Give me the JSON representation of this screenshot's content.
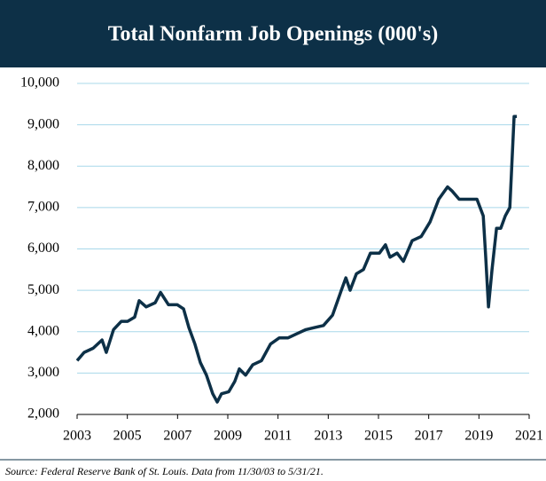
{
  "chart_data": {
    "type": "line",
    "title": "Total Nonfarm Job Openings (000's)",
    "source": "Source: Federal Reserve Bank of St. Louis. Data from 11/30/03 to 5/31/21.",
    "color": "#0d3047",
    "grid": true,
    "x": [
      2003.0,
      2003.28,
      2003.64,
      2003.99,
      2004.16,
      2004.45,
      2004.76,
      2005.01,
      2005.29,
      2005.47,
      2005.75,
      2006.11,
      2006.32,
      2006.64,
      2006.99,
      2007.24,
      2007.45,
      2007.69,
      2007.91,
      2008.15,
      2008.4,
      2008.58,
      2008.75,
      2009.04,
      2009.28,
      2009.46,
      2009.71,
      2009.99,
      2010.34,
      2010.7,
      2011.05,
      2011.4,
      2011.75,
      2012.11,
      2012.46,
      2012.81,
      2013.17,
      2013.52,
      2013.7,
      2013.87,
      2014.12,
      2014.4,
      2014.68,
      2015.04,
      2015.28,
      2015.46,
      2015.74,
      2015.99,
      2016.34,
      2016.7,
      2017.05,
      2017.4,
      2017.75,
      2017.93,
      2018.21,
      2018.57,
      2018.92,
      2019.17,
      2019.27,
      2019.38,
      2019.52,
      2019.7,
      2019.87,
      2020.05,
      2020.23,
      2020.4,
      2020.51
    ],
    "values": [
      3300,
      3500,
      3600,
      3800,
      3500,
      4050,
      4250,
      4250,
      4350,
      4750,
      4600,
      4700,
      4950,
      4650,
      4650,
      4550,
      4100,
      3700,
      3250,
      2950,
      2500,
      2300,
      2500,
      2550,
      2800,
      3100,
      2950,
      3200,
      3300,
      3700,
      3850,
      3850,
      3950,
      4050,
      4100,
      4150,
      4400,
      5000,
      5300,
      5000,
      5400,
      5500,
      5900,
      5900,
      6100,
      5800,
      5900,
      5700,
      6200,
      6300,
      6650,
      7200,
      7500,
      7400,
      7200,
      7200,
      7200,
      6800,
      5800,
      4600,
      5500,
      6500,
      6500,
      6800,
      7000,
      9200,
      9200
    ],
    "xlim": [
      2003,
      2021
    ],
    "xticks": [
      2003,
      2005,
      2007,
      2009,
      2011,
      2013,
      2015,
      2017,
      2019,
      2021
    ],
    "ylim": [
      2000,
      10000
    ],
    "yticks": [
      {
        "value": 2000,
        "label": "2,000"
      },
      {
        "value": 3000,
        "label": "3,000"
      },
      {
        "value": 4000,
        "label": "4,000"
      },
      {
        "value": 5000,
        "label": "5,000"
      },
      {
        "value": 6000,
        "label": "6,000"
      },
      {
        "value": 7000,
        "label": "7,000"
      },
      {
        "value": 8000,
        "label": "8,000"
      },
      {
        "value": 9000,
        "label": "9,000"
      },
      {
        "value": 10000,
        "label": "10,000"
      }
    ]
  }
}
